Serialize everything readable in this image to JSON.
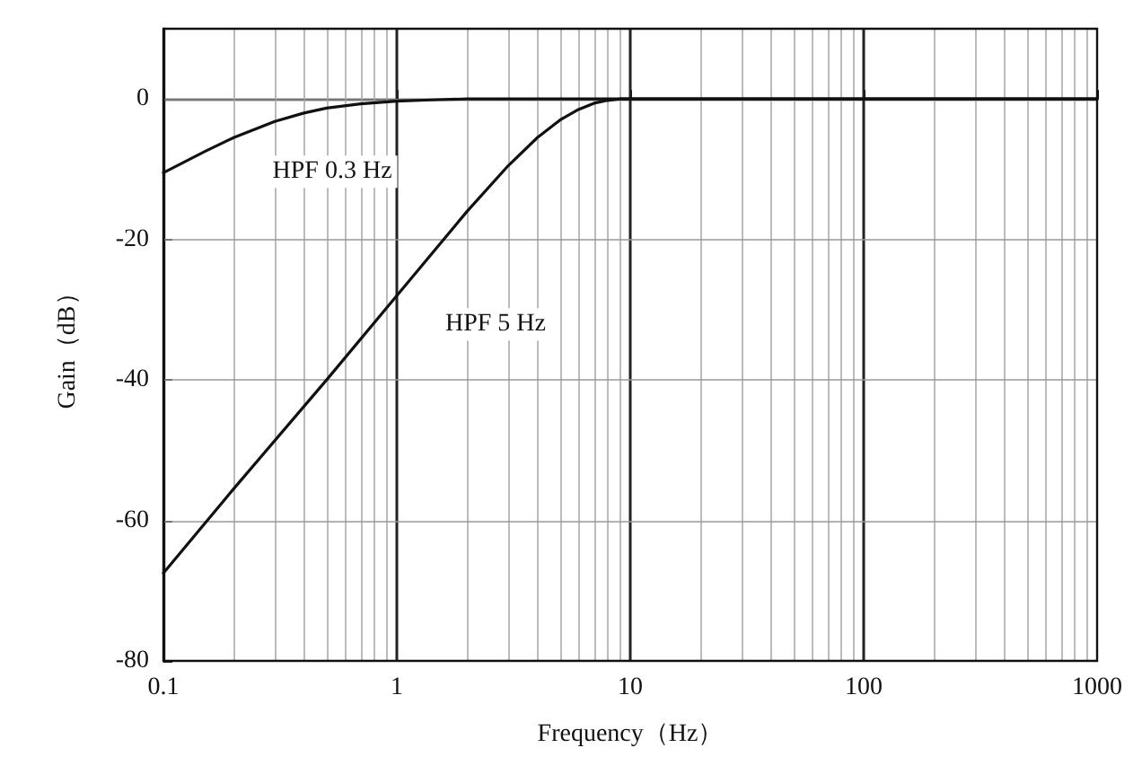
{
  "chart_data": {
    "type": "line",
    "xlabel": "Frequency（Hz）",
    "ylabel": "Gain（dB）",
    "log": "x",
    "xlim": [
      0.1,
      1000
    ],
    "xticks": [
      0.1,
      1,
      10,
      100,
      1000
    ],
    "ylim": [
      -80,
      10
    ],
    "yticks": [
      -80,
      -60,
      -40,
      -20,
      0
    ],
    "grid": true,
    "legend": false,
    "marker": "none",
    "line_style": "solid",
    "series": [
      {
        "name": "HPF 0.3 Hz",
        "color": "#111111",
        "x": [
          0.1,
          0.15,
          0.2,
          0.3,
          0.4,
          0.5,
          0.7,
          1,
          1.5,
          2,
          3,
          10,
          100,
          1000
        ],
        "values": [
          -10.5,
          -7.5,
          -5.5,
          -3.2,
          -2,
          -1.3,
          -0.7,
          -0.3,
          -0.1,
          0,
          0,
          0,
          0,
          0
        ]
      },
      {
        "name": "HPF 5 Hz",
        "color": "#111111",
        "x": [
          0.1,
          0.2,
          0.5,
          1,
          2,
          3,
          4,
          5,
          6,
          7,
          8,
          9,
          10,
          100,
          1000
        ],
        "values": [
          -67.5,
          -55.5,
          -40,
          -28,
          -16,
          -9.5,
          -5.5,
          -3,
          -1.5,
          -0.6,
          -0.2,
          0,
          0,
          0,
          0
        ]
      }
    ]
  }
}
